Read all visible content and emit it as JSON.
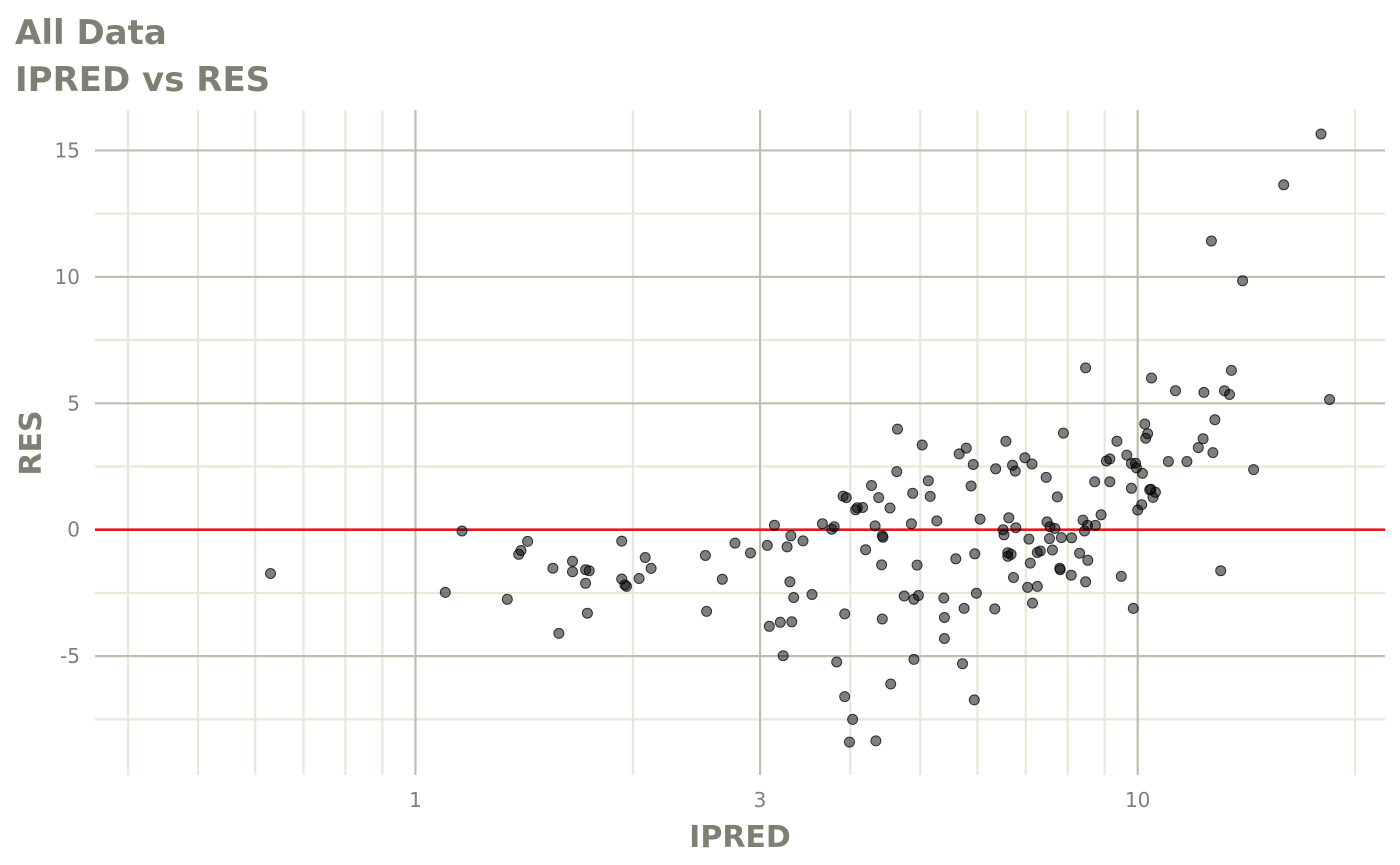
{
  "chart_data": {
    "type": "scatter",
    "title": "All Data",
    "subtitle": "IPRED vs RES",
    "xlabel": "IPRED",
    "ylabel": "RES",
    "x_scale": "log10",
    "xlim": [
      0.36,
      22
    ],
    "ylim": [
      -9.7,
      16.6
    ],
    "x_ticks": [
      1,
      3,
      10
    ],
    "x_tick_labels": [
      "1",
      "3",
      "10"
    ],
    "y_ticks": [
      -5,
      0,
      5,
      10,
      15
    ],
    "y_tick_labels": [
      "-5",
      "0",
      "5",
      "10",
      "15"
    ],
    "grid": true,
    "legend": "none",
    "reference_line": {
      "y": 0,
      "color": "#e41a1c"
    },
    "colors": {
      "points": "#000000",
      "points_opacity": 0.5,
      "major_grid": "#bfbfb0",
      "minor_grid": "#e8e8d8",
      "title": "#7f7f74",
      "tick_labels": "#7f7f7f"
    },
    "points": [
      [
        0.63,
        -1.73
      ],
      [
        1.16,
        -0.05
      ],
      [
        1.1,
        -2.48
      ],
      [
        1.34,
        -2.75
      ],
      [
        1.39,
        -0.97
      ],
      [
        1.4,
        -0.82
      ],
      [
        1.43,
        -0.46
      ],
      [
        1.55,
        -1.52
      ],
      [
        1.58,
        -4.1
      ],
      [
        1.65,
        -1.25
      ],
      [
        1.65,
        -1.66
      ],
      [
        1.72,
        -1.58
      ],
      [
        1.72,
        -2.12
      ],
      [
        1.73,
        -3.3
      ],
      [
        1.74,
        -1.62
      ],
      [
        1.93,
        -0.45
      ],
      [
        1.93,
        -1.95
      ],
      [
        1.95,
        -2.18
      ],
      [
        1.96,
        -2.24
      ],
      [
        2.04,
        -1.93
      ],
      [
        2.08,
        -1.1
      ],
      [
        2.12,
        -1.53
      ],
      [
        2.52,
        -1.02
      ],
      [
        2.53,
        -3.23
      ],
      [
        2.66,
        -1.96
      ],
      [
        2.77,
        -0.53
      ],
      [
        2.91,
        -0.92
      ],
      [
        3.07,
        -0.62
      ],
      [
        3.09,
        -3.82
      ],
      [
        3.14,
        0.18
      ],
      [
        3.2,
        -3.66
      ],
      [
        3.23,
        -4.98
      ],
      [
        3.27,
        -0.68
      ],
      [
        3.3,
        -2.06
      ],
      [
        3.31,
        -0.24
      ],
      [
        3.32,
        -3.64
      ],
      [
        3.34,
        -2.68
      ],
      [
        3.44,
        -0.44
      ],
      [
        3.54,
        -2.56
      ],
      [
        3.66,
        0.24
      ],
      [
        3.77,
        0.02
      ],
      [
        3.8,
        0.12
      ],
      [
        3.83,
        -5.23
      ],
      [
        3.91,
        1.33
      ],
      [
        3.93,
        -3.33
      ],
      [
        3.95,
        1.27
      ],
      [
        3.93,
        -6.6
      ],
      [
        3.99,
        -8.4
      ],
      [
        4.03,
        -7.5
      ],
      [
        4.07,
        0.79
      ],
      [
        4.09,
        0.87
      ],
      [
        4.16,
        0.88
      ],
      [
        4.2,
        -0.79
      ],
      [
        4.28,
        1.75
      ],
      [
        4.33,
        0.15
      ],
      [
        4.34,
        -8.35
      ],
      [
        4.38,
        1.27
      ],
      [
        4.42,
        -1.39
      ],
      [
        4.43,
        -0.24
      ],
      [
        4.44,
        -0.3
      ],
      [
        4.43,
        -3.53
      ],
      [
        4.54,
        0.86
      ],
      [
        4.55,
        -6.1
      ],
      [
        4.64,
        2.3
      ],
      [
        4.65,
        3.98
      ],
      [
        4.75,
        -2.62
      ],
      [
        4.86,
        0.24
      ],
      [
        4.88,
        1.44
      ],
      [
        4.9,
        -2.75
      ],
      [
        4.9,
        -5.13
      ],
      [
        4.95,
        -1.4
      ],
      [
        4.97,
        -2.6
      ],
      [
        5.03,
        3.35
      ],
      [
        5.13,
        1.94
      ],
      [
        5.16,
        1.32
      ],
      [
        5.27,
        0.35
      ],
      [
        5.39,
        -2.7
      ],
      [
        5.4,
        -3.47
      ],
      [
        5.4,
        -4.3
      ],
      [
        5.6,
        -1.15
      ],
      [
        5.66,
        3.0
      ],
      [
        5.72,
        -5.3
      ],
      [
        5.75,
        -3.11
      ],
      [
        5.79,
        3.23
      ],
      [
        5.88,
        1.73
      ],
      [
        5.92,
        2.58
      ],
      [
        5.94,
        -6.73
      ],
      [
        5.95,
        -0.95
      ],
      [
        5.98,
        -2.51
      ],
      [
        6.05,
        0.42
      ],
      [
        6.36,
        2.41
      ],
      [
        6.34,
        -3.13
      ],
      [
        6.51,
        0.0
      ],
      [
        6.53,
        -0.2
      ],
      [
        6.57,
        3.5
      ],
      [
        6.61,
        -0.91
      ],
      [
        6.61,
        -1.05
      ],
      [
        6.63,
        0.47
      ],
      [
        6.68,
        -0.97
      ],
      [
        6.71,
        2.55
      ],
      [
        6.73,
        -1.89
      ],
      [
        6.77,
        2.32
      ],
      [
        6.78,
        0.08
      ],
      [
        6.98,
        2.85
      ],
      [
        7.04,
        -2.28
      ],
      [
        7.07,
        -0.37
      ],
      [
        7.1,
        -1.32
      ],
      [
        7.15,
        -2.9
      ],
      [
        7.14,
        2.6
      ],
      [
        7.26,
        -2.24
      ],
      [
        7.26,
        -0.9
      ],
      [
        7.33,
        -0.84
      ],
      [
        7.47,
        2.07
      ],
      [
        7.49,
        0.31
      ],
      [
        7.55,
        -0.35
      ],
      [
        7.56,
        0.12
      ],
      [
        7.62,
        -0.8
      ],
      [
        7.68,
        0.05
      ],
      [
        7.74,
        1.3
      ],
      [
        7.8,
        -1.52
      ],
      [
        7.81,
        -1.58
      ],
      [
        7.84,
        -0.31
      ],
      [
        7.89,
        3.82
      ],
      [
        8.09,
        -1.8
      ],
      [
        8.1,
        -0.32
      ],
      [
        8.31,
        -0.93
      ],
      [
        8.4,
        0.38
      ],
      [
        8.44,
        -0.05
      ],
      [
        8.47,
        -2.06
      ],
      [
        8.52,
        0.17
      ],
      [
        8.47,
        6.4
      ],
      [
        8.53,
        -1.21
      ],
      [
        8.72,
        1.9
      ],
      [
        8.74,
        0.17
      ],
      [
        8.9,
        0.59
      ],
      [
        9.05,
        2.72
      ],
      [
        9.15,
        2.8
      ],
      [
        9.15,
        1.9
      ],
      [
        9.36,
        3.5
      ],
      [
        9.49,
        -1.84
      ],
      [
        9.66,
        2.95
      ],
      [
        9.8,
        1.64
      ],
      [
        9.8,
        2.62
      ],
      [
        9.86,
        -3.11
      ],
      [
        9.93,
        2.63
      ],
      [
        9.96,
        2.45
      ],
      [
        10.0,
        0.78
      ],
      [
        10.13,
        0.99
      ],
      [
        10.15,
        2.23
      ],
      [
        10.23,
        4.18
      ],
      [
        10.26,
        3.62
      ],
      [
        10.32,
        3.8
      ],
      [
        10.39,
        1.58
      ],
      [
        10.45,
        6.0
      ],
      [
        10.43,
        1.6
      ],
      [
        10.5,
        1.28
      ],
      [
        10.58,
        1.48
      ],
      [
        11.03,
        2.7
      ],
      [
        11.28,
        5.5
      ],
      [
        11.7,
        2.7
      ],
      [
        12.13,
        3.25
      ],
      [
        12.32,
        3.6
      ],
      [
        12.35,
        5.43
      ],
      [
        12.65,
        11.42
      ],
      [
        12.71,
        3.05
      ],
      [
        12.79,
        4.35
      ],
      [
        13.03,
        -1.62
      ],
      [
        13.19,
        5.5
      ],
      [
        13.4,
        5.35
      ],
      [
        13.48,
        6.3
      ],
      [
        13.97,
        9.85
      ],
      [
        14.47,
        2.38
      ],
      [
        15.93,
        13.64
      ],
      [
        17.94,
        15.65
      ],
      [
        18.44,
        5.15
      ]
    ]
  }
}
